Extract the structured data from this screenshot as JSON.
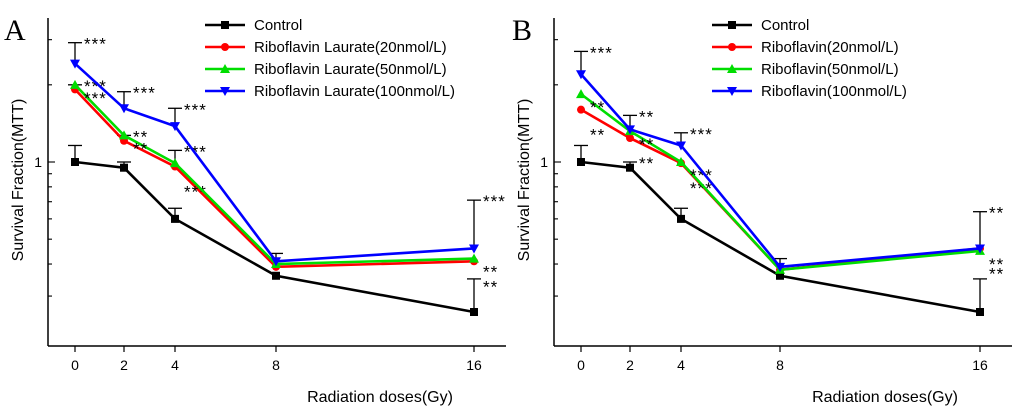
{
  "chart_data": [
    {
      "type": "line",
      "panel": "A",
      "xlabel": "Radiation doses(Gy)",
      "ylabel": "Survival Fraction(MTT)",
      "y_scale": "log",
      "x_ticks": [
        "0",
        "2",
        "4",
        "8",
        "16"
      ],
      "x": [
        0,
        2,
        4,
        8,
        16
      ],
      "y_tick_labels": [
        "1"
      ],
      "legend_position": "top-center",
      "series": [
        {
          "name": "Control",
          "color": "#000000",
          "marker": "square",
          "values": [
            1.0,
            0.95,
            0.6,
            0.36,
            0.26
          ],
          "err_up": [
            0.16,
            0.05,
            0.06,
            0.0,
            0.09
          ],
          "annotations": []
        },
        {
          "name": "Riboflavin Laurate(20nmol/L)",
          "color": "#ff0000",
          "marker": "circle",
          "values": [
            1.92,
            1.21,
            0.96,
            0.39,
            0.41
          ],
          "err_up": [
            0.08,
            0.06,
            0.0,
            0.0,
            0.0
          ],
          "annotations": [
            "***",
            "**",
            "***",
            "",
            "**"
          ]
        },
        {
          "name": "Riboflavin Laurate(50nmol/L)",
          "color": "#00dd00",
          "marker": "triangle-up",
          "values": [
            2.0,
            1.27,
            0.99,
            0.4,
            0.42
          ],
          "err_up": [
            0.0,
            0.0,
            0.12,
            0.0,
            0.0
          ],
          "annotations": [
            "***",
            "**",
            "***",
            "",
            "**"
          ]
        },
        {
          "name": "Riboflavin Laurate(100nmol/L)",
          "color": "#0000ff",
          "marker": "triangle-down",
          "values": [
            2.42,
            1.62,
            1.38,
            0.41,
            0.46
          ],
          "err_up": [
            0.5,
            0.26,
            0.24,
            0.03,
            0.25
          ],
          "annotations": [
            "***",
            "***",
            "***",
            "",
            "***"
          ]
        }
      ]
    },
    {
      "type": "line",
      "panel": "B",
      "xlabel": "Radiation doses(Gy)",
      "ylabel": "Survival Fraction(MTT)",
      "y_scale": "log",
      "x_ticks": [
        "0",
        "2",
        "4",
        "8",
        "16"
      ],
      "x": [
        0,
        2,
        4,
        8,
        16
      ],
      "y_tick_labels": [
        "1"
      ],
      "legend_position": "top-center",
      "series": [
        {
          "name": "Control",
          "color": "#000000",
          "marker": "square",
          "values": [
            1.0,
            0.95,
            0.6,
            0.36,
            0.26
          ],
          "err_up": [
            0.16,
            0.05,
            0.06,
            0.0,
            0.09
          ],
          "annotations": []
        },
        {
          "name": "Riboflavin(20nmol/L)",
          "color": "#ff0000",
          "marker": "circle",
          "values": [
            1.6,
            1.24,
            0.99,
            0.38,
            0.46
          ],
          "err_up": [
            0.0,
            0.0,
            0.0,
            0.0,
            0.0
          ],
          "annotations": [
            "**",
            "**",
            "***",
            "",
            "**"
          ]
        },
        {
          "name": "Riboflavin(50nmol/L)",
          "color": "#00dd00",
          "marker": "triangle-up",
          "values": [
            1.84,
            1.32,
            1.0,
            0.38,
            0.45
          ],
          "err_up": [
            0.0,
            0.0,
            0.0,
            0.0,
            0.0
          ],
          "annotations": [
            "**",
            "**",
            "***",
            "",
            "**"
          ]
        },
        {
          "name": "Riboflavin(100nmol/L)",
          "color": "#0000ff",
          "marker": "triangle-down",
          "values": [
            2.2,
            1.34,
            1.16,
            0.39,
            0.46
          ],
          "err_up": [
            0.5,
            0.18,
            0.14,
            0.03,
            0.18
          ],
          "annotations": [
            "***",
            "**",
            "***",
            "",
            "**"
          ]
        }
      ]
    }
  ]
}
